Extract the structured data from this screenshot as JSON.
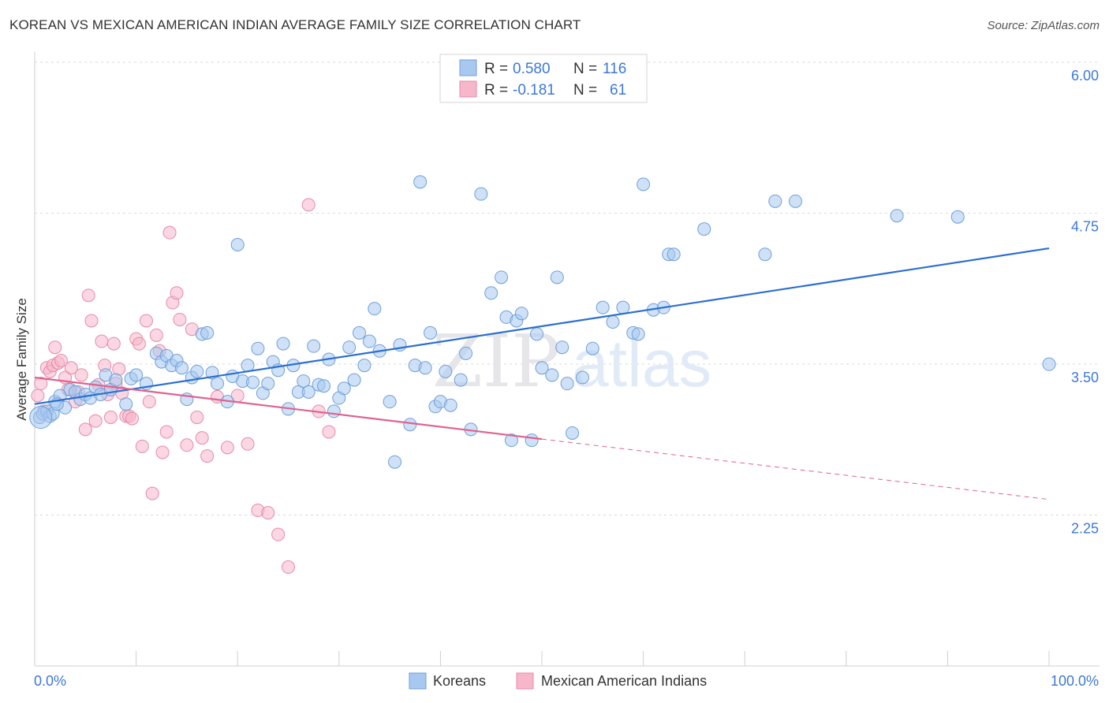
{
  "title": "KOREAN VS MEXICAN AMERICAN INDIAN AVERAGE FAMILY SIZE CORRELATION CHART",
  "source": "Source: ZipAtlas.com",
  "watermark": {
    "zip": "ZIP",
    "atlas": "atlas"
  },
  "legend_top": {
    "rows": [
      {
        "r_label": "R = ",
        "r_value": "0.580",
        "n_label": "N = ",
        "n_value": "116"
      },
      {
        "r_label": "R = ",
        "r_value": "-0.181",
        "n_label": "N = ",
        "n_value": "61"
      }
    ]
  },
  "colors": {
    "koreans_fill": "#a8c8f0",
    "koreans_stroke": "#6f9fd8",
    "koreans_line": "#2b6fd0",
    "mexican_fill": "#f6b7cb",
    "mexican_stroke": "#e88aa8",
    "mexican_line": "#e0628f",
    "tick": "#3d78d8",
    "grid": "#d9d9d9"
  },
  "chart_data": {
    "type": "scatter",
    "title": "KOREAN VS MEXICAN AMERICAN INDIAN AVERAGE FAMILY SIZE CORRELATION CHART",
    "xlabel": "",
    "ylabel": "Average Family Size",
    "xlim": [
      0,
      100
    ],
    "ylim": [
      1.0,
      6.15
    ],
    "x_tick_labels": [
      "0.0%",
      "100.0%"
    ],
    "y_ticks": [
      2.25,
      3.5,
      4.75,
      6.0
    ],
    "y_tick_labels": [
      "2.25",
      "3.50",
      "4.75",
      "6.00"
    ],
    "grid": "horizontal dashed",
    "legend": "top-center and bottom",
    "series": [
      {
        "name": "Koreans",
        "R": 0.58,
        "N": 116,
        "trend": {
          "x": [
            0,
            100
          ],
          "y": [
            3.28,
            4.57
          ],
          "dashed_from": null
        },
        "points": [
          [
            0.5,
            3.17
          ],
          [
            0.8,
            3.2
          ],
          [
            1.2,
            3.22
          ],
          [
            1.5,
            3.18
          ],
          [
            2,
            3.3
          ],
          [
            2.5,
            3.35
          ],
          [
            3,
            3.25
          ],
          [
            3.5,
            3.4
          ],
          [
            4,
            3.38
          ],
          [
            4.5,
            3.32
          ],
          [
            5,
            3.36
          ],
          [
            5.5,
            3.33
          ],
          [
            6,
            3.42
          ],
          [
            6.5,
            3.36
          ],
          [
            7,
            3.52
          ],
          [
            7.5,
            3.4
          ],
          [
            8,
            3.48
          ],
          [
            9,
            3.28
          ],
          [
            9.5,
            3.49
          ],
          [
            10,
            3.52
          ],
          [
            11,
            3.45
          ],
          [
            12,
            3.7
          ],
          [
            12.5,
            3.63
          ],
          [
            13,
            3.68
          ],
          [
            13.5,
            3.6
          ],
          [
            14,
            3.64
          ],
          [
            14.5,
            3.58
          ],
          [
            15,
            3.32
          ],
          [
            15.5,
            3.5
          ],
          [
            16,
            3.55
          ],
          [
            16.5,
            3.86
          ],
          [
            17,
            3.87
          ],
          [
            17.5,
            3.54
          ],
          [
            18,
            3.45
          ],
          [
            19,
            3.3
          ],
          [
            19.5,
            3.51
          ],
          [
            20,
            4.6
          ],
          [
            20.5,
            3.47
          ],
          [
            21,
            3.6
          ],
          [
            21.5,
            3.46
          ],
          [
            22,
            3.74
          ],
          [
            22.5,
            3.37
          ],
          [
            23,
            3.45
          ],
          [
            23.5,
            3.63
          ],
          [
            24,
            3.56
          ],
          [
            24.5,
            3.78
          ],
          [
            25,
            3.24
          ],
          [
            25.5,
            3.6
          ],
          [
            26,
            3.38
          ],
          [
            26.5,
            3.47
          ],
          [
            27,
            3.38
          ],
          [
            27.5,
            3.76
          ],
          [
            28,
            3.44
          ],
          [
            28.5,
            3.43
          ],
          [
            29,
            3.65
          ],
          [
            29.5,
            3.22
          ],
          [
            30,
            3.33
          ],
          [
            30.5,
            3.41
          ],
          [
            31,
            3.75
          ],
          [
            31.5,
            3.48
          ],
          [
            32,
            3.87
          ],
          [
            32.5,
            3.6
          ],
          [
            33,
            3.8
          ],
          [
            33.5,
            4.07
          ],
          [
            34,
            3.72
          ],
          [
            35,
            3.3
          ],
          [
            35.5,
            2.8
          ],
          [
            36,
            3.77
          ],
          [
            37,
            3.11
          ],
          [
            37.5,
            3.6
          ],
          [
            38,
            5.12
          ],
          [
            38.5,
            3.58
          ],
          [
            39,
            3.87
          ],
          [
            39.5,
            3.26
          ],
          [
            40,
            3.3
          ],
          [
            40.5,
            3.55
          ],
          [
            41,
            3.27
          ],
          [
            42,
            3.48
          ],
          [
            42.5,
            3.7
          ],
          [
            43,
            3.07
          ],
          [
            44,
            5.02
          ],
          [
            45,
            4.2
          ],
          [
            46,
            4.33
          ],
          [
            46.5,
            4.0
          ],
          [
            47,
            2.98
          ],
          [
            47.5,
            3.97
          ],
          [
            48,
            4.03
          ],
          [
            49,
            2.98
          ],
          [
            49.5,
            3.86
          ],
          [
            50,
            3.58
          ],
          [
            51,
            3.52
          ],
          [
            51.5,
            4.33
          ],
          [
            52,
            3.75
          ],
          [
            52.5,
            3.45
          ],
          [
            53,
            3.04
          ],
          [
            54,
            3.5
          ],
          [
            55,
            3.74
          ],
          [
            56,
            4.08
          ],
          [
            57,
            3.96
          ],
          [
            58,
            4.08
          ],
          [
            59,
            3.87
          ],
          [
            59.5,
            3.86
          ],
          [
            60,
            5.1
          ],
          [
            61,
            4.06
          ],
          [
            62,
            4.08
          ],
          [
            62.5,
            4.52
          ],
          [
            63,
            4.52
          ],
          [
            66,
            4.73
          ],
          [
            72,
            4.52
          ],
          [
            73,
            4.96
          ],
          [
            75,
            4.96
          ],
          [
            85,
            4.84
          ],
          [
            91,
            4.83
          ],
          [
            100,
            3.61
          ],
          [
            1.8,
            3.2
          ],
          [
            2.2,
            3.28
          ]
        ]
      },
      {
        "name": "Mexican American Indians",
        "R": -0.181,
        "N": 61,
        "trend": {
          "x": [
            0,
            50
          ],
          "y": [
            3.5,
            2.99
          ],
          "dashed_to": [
            100,
            2.49
          ]
        },
        "points": [
          [
            0.3,
            3.35
          ],
          [
            0.6,
            3.45
          ],
          [
            0.9,
            3.22
          ],
          [
            1.2,
            3.58
          ],
          [
            1.5,
            3.55
          ],
          [
            1.8,
            3.6
          ],
          [
            2,
            3.75
          ],
          [
            2.3,
            3.62
          ],
          [
            2.6,
            3.64
          ],
          [
            3,
            3.5
          ],
          [
            3.3,
            3.4
          ],
          [
            3.6,
            3.58
          ],
          [
            4,
            3.3
          ],
          [
            4.3,
            3.38
          ],
          [
            4.6,
            3.52
          ],
          [
            5,
            3.07
          ],
          [
            5.3,
            4.18
          ],
          [
            5.6,
            3.97
          ],
          [
            6,
            3.14
          ],
          [
            6.3,
            3.44
          ],
          [
            6.6,
            3.8
          ],
          [
            6.9,
            3.6
          ],
          [
            7.2,
            3.36
          ],
          [
            7.5,
            3.17
          ],
          [
            7.8,
            3.78
          ],
          [
            8,
            3.45
          ],
          [
            8.3,
            3.57
          ],
          [
            8.6,
            3.37
          ],
          [
            9,
            3.18
          ],
          [
            9.3,
            3.18
          ],
          [
            9.6,
            3.16
          ],
          [
            10,
            3.82
          ],
          [
            10.3,
            3.78
          ],
          [
            10.6,
            2.93
          ],
          [
            11,
            3.97
          ],
          [
            11.3,
            3.3
          ],
          [
            11.6,
            2.54
          ],
          [
            12,
            3.85
          ],
          [
            12.3,
            3.72
          ],
          [
            12.6,
            2.88
          ],
          [
            13,
            3.05
          ],
          [
            13.3,
            4.7
          ],
          [
            13.6,
            4.12
          ],
          [
            14,
            4.2
          ],
          [
            14.3,
            3.98
          ],
          [
            15,
            2.94
          ],
          [
            15.5,
            3.9
          ],
          [
            16,
            3.17
          ],
          [
            16.5,
            3.0
          ],
          [
            17,
            2.85
          ],
          [
            18,
            3.34
          ],
          [
            19,
            2.92
          ],
          [
            20,
            3.35
          ],
          [
            21,
            2.95
          ],
          [
            22,
            2.4
          ],
          [
            23,
            2.38
          ],
          [
            24,
            2.2
          ],
          [
            25,
            1.93
          ],
          [
            27,
            4.93
          ],
          [
            28,
            3.22
          ],
          [
            29,
            3.05
          ]
        ]
      }
    ]
  },
  "bottom_legend": [
    {
      "label": "Koreans"
    },
    {
      "label": "Mexican American Indians"
    }
  ]
}
